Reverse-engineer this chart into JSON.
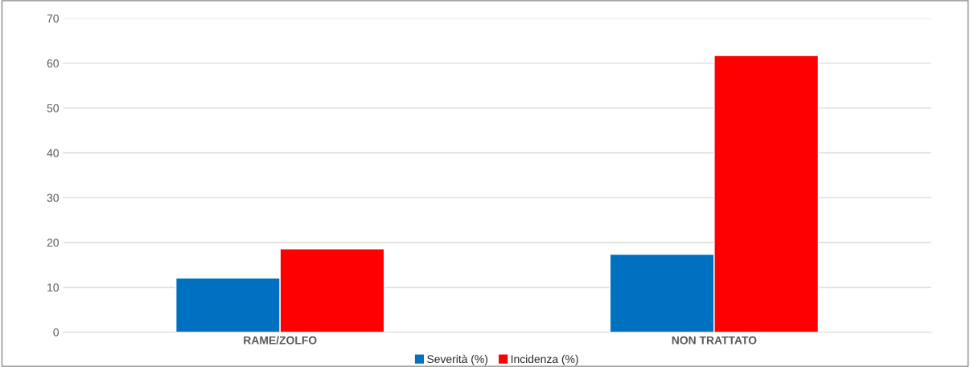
{
  "chart_data": {
    "type": "bar",
    "categories": [
      "RAME/ZOLFO",
      "NON TRATTATO"
    ],
    "series": [
      {
        "name": "Severità (%)",
        "color": "#0070c0",
        "values": [
          12.1,
          17.4
        ]
      },
      {
        "name": "Incidenza (%)",
        "color": "#ff0000",
        "values": [
          18.6,
          61.7
        ]
      }
    ],
    "ylim": [
      0,
      70
    ],
    "yticks": [
      0,
      10,
      20,
      30,
      40,
      50,
      60,
      70
    ],
    "grid": "y",
    "legend": "bottom"
  }
}
